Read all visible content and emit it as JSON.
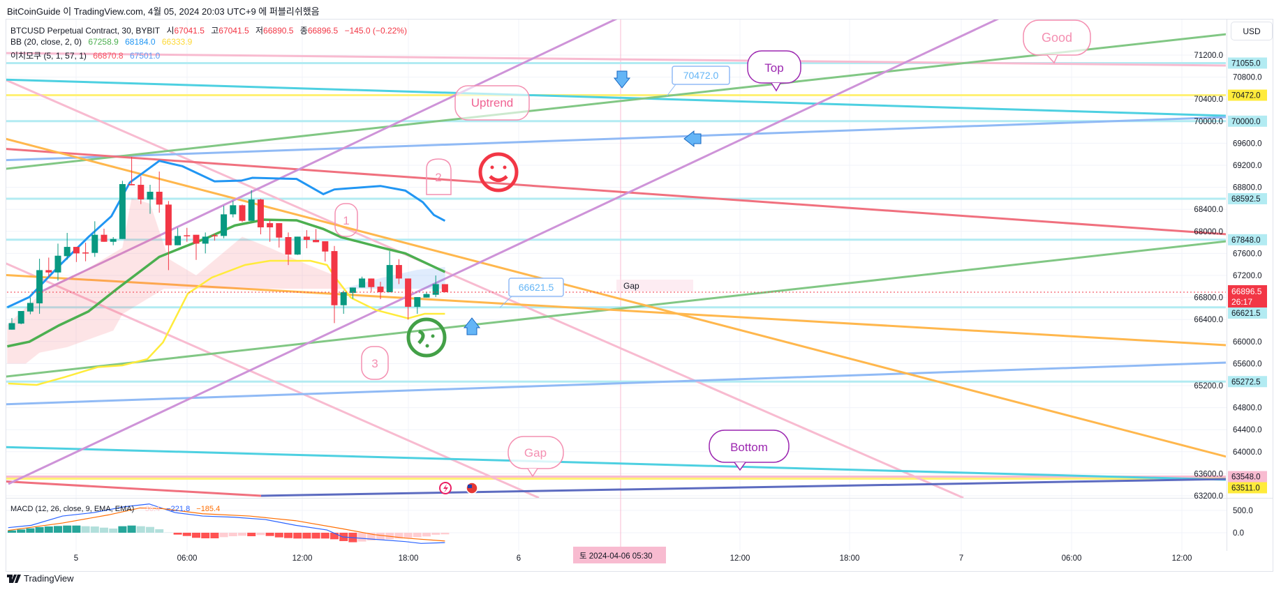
{
  "header": {
    "published": "BitCoinGuide 이 TradingView.com, 4월 05, 2024 20:03 UTC+9 에 퍼블리쉬했음",
    "symbol": "BTCUSD Perpetual Contract, 30, BYBIT",
    "o_label": "시",
    "o": "67041.5",
    "h_label": "고",
    "h": "67041.5",
    "l_label": "저",
    "l": "66890.5",
    "c_label": "종",
    "c": "66896.5",
    "change": "−145.0 (−0.22%)",
    "bb_label": "BB (20, close, 2, 0)",
    "bb_basis": "67258.9",
    "bb_upper": "68184.0",
    "bb_lower": "66333.9",
    "ichi_label": "이치모쿠 (5, 1, 57, 1)",
    "ichi_a": "66870.8",
    "ichi_b": "67501.0",
    "currency": "USD"
  },
  "colors": {
    "up": "#089981",
    "down": "#f23645",
    "bb_basis": "#4caf50",
    "bb_upper": "#2196f3",
    "bb_lower": "#ffeb3b"
  },
  "price_axis": {
    "ticks": [
      "71200.0",
      "70800.0",
      "70400.0",
      "70000.0",
      "69600.0",
      "69200.0",
      "68800.0",
      "68400.0",
      "68000.0",
      "67600.0",
      "67200.0",
      "66800.0",
      "66400.0",
      "66000.0",
      "65600.0",
      "65200.0",
      "64800.0",
      "64400.0",
      "64000.0",
      "63600.0",
      "63200.0"
    ],
    "labels": [
      {
        "text": "71055.0",
        "color": "#b2ebf2"
      },
      {
        "text": "70472.0",
        "color": "#ffeb3b"
      },
      {
        "text": "70000.0",
        "color": "#b2ebf2"
      },
      {
        "text": "68592.5",
        "color": "#b2ebf2"
      },
      {
        "text": "67848.0",
        "color": "#b2ebf2"
      },
      {
        "text": "66621.5",
        "color": "#b2ebf2"
      },
      {
        "text": "65272.5",
        "color": "#b2ebf2"
      },
      {
        "text": "63548.0",
        "color": "#f8bbd0"
      },
      {
        "text": "63511.0",
        "color": "#ffeb3b"
      }
    ],
    "last_price": "66896.5",
    "countdown": "26:17"
  },
  "time_axis": {
    "ticks": [
      "5",
      "06:00",
      "12:00",
      "18:00",
      "6",
      "12:00",
      "18:00",
      "7",
      "06:00",
      "12:00"
    ],
    "crosshair": "토 2024-04-06 05:30"
  },
  "annotations": {
    "uptrend": "Uptrend",
    "top": "Top",
    "good": "Good",
    "bottom": "Bottom",
    "gap_bubble": "Gap",
    "gap_text": "Gap",
    "price_note_1": "70472.0",
    "price_note_2": "66621.5",
    "n1": "1",
    "n2": "2",
    "n3": "3"
  },
  "macd": {
    "label": "MACD (12, 26, close, 9, EMA, EMA)",
    "hist": "−36.4",
    "macd": "−221.8",
    "signal": "−185.4",
    "ticks": [
      "500.0",
      "0.0"
    ]
  },
  "footer": {
    "brand": "TradingView"
  },
  "chart_data": {
    "type": "candlestick",
    "title": "BTCUSD Perpetual Contract, 30, BYBIT",
    "ylim": [
      63100,
      71600
    ],
    "interval_minutes": 30,
    "candles": [
      [
        66216,
        66334,
        66427,
        66216
      ],
      [
        66326,
        66554,
        66554,
        66313
      ],
      [
        66545,
        66701,
        66798,
        66495
      ],
      [
        66693,
        67296,
        67503,
        66503
      ],
      [
        67296,
        67254,
        67524,
        67178
      ],
      [
        67254,
        67558,
        67777,
        67106
      ],
      [
        67550,
        67718,
        67972,
        67486
      ],
      [
        67718,
        67600,
        67718,
        67444
      ],
      [
        67617,
        67609,
        67794,
        67457
      ],
      [
        67609,
        67938,
        68183,
        67537
      ],
      [
        67938,
        67811,
        68048,
        67811
      ],
      [
        67811,
        67862,
        67896,
        67748
      ],
      [
        67862,
        68858,
        68917,
        67862
      ],
      [
        68858,
        68837,
        69352,
        68837
      ],
      [
        68845,
        68579,
        69001,
        68495
      ],
      [
        68579,
        68719,
        68845,
        68318
      ],
      [
        68719,
        68486,
        69086,
        68339
      ],
      [
        68486,
        67748,
        68550,
        67296
      ],
      [
        67748,
        67917,
        68064,
        67748
      ],
      [
        67929,
        67925,
        68064,
        67811
      ],
      [
        67938,
        67777,
        67938,
        67482
      ],
      [
        67777,
        67904,
        67980,
        67600
      ],
      [
        67929,
        67917,
        67959,
        67832
      ],
      [
        67917,
        68309,
        68465,
        67875
      ],
      [
        68309,
        68474,
        68550,
        68254
      ],
      [
        68474,
        68191,
        68486,
        68170
      ],
      [
        68191,
        68579,
        68748,
        68191
      ],
      [
        68579,
        68073,
        68592,
        67946
      ],
      [
        68149,
        68073,
        68212,
        67811
      ],
      [
        68149,
        67887,
        68149,
        67706
      ],
      [
        67896,
        67579,
        67980,
        67389
      ],
      [
        67579,
        67904,
        67904,
        67571
      ],
      [
        67904,
        67845,
        68022,
        67693
      ],
      [
        67845,
        67803,
        68043,
        67803
      ],
      [
        67820,
        67634,
        67820,
        67453
      ],
      [
        67642,
        66659,
        67735,
        66334
      ],
      [
        66659,
        66895,
        66925,
        66503
      ],
      [
        66883,
        66980,
        66980,
        66777
      ],
      [
        66980,
        67144,
        67178,
        66980
      ],
      [
        67144,
        66988,
        67144,
        66904
      ],
      [
        66997,
        66895,
        67085,
        66769
      ],
      [
        66895,
        67389,
        67642,
        66895
      ],
      [
        67389,
        67144,
        67495,
        67043
      ],
      [
        67144,
        66630,
        67144,
        66398
      ],
      [
        66630,
        66807,
        66807,
        66503
      ],
      [
        66798,
        66862,
        66904,
        66798
      ],
      [
        66849,
        67043,
        67199,
        66807
      ],
      [
        67041.5,
        66896.5,
        67041.5,
        66890.5
      ]
    ],
    "bb_upper": [
      [
        -0.5,
        66621
      ],
      [
        1.9,
        66807
      ],
      [
        5.1,
        67368
      ],
      [
        8.3,
        67896
      ],
      [
        10.8,
        68275
      ],
      [
        12.8,
        68887
      ],
      [
        16,
        69280
      ],
      [
        18.5,
        69183
      ],
      [
        22,
        68908
      ],
      [
        24.9,
        68921
      ],
      [
        26.1,
        68972
      ],
      [
        30.9,
        68951
      ],
      [
        33.8,
        68676
      ],
      [
        35,
        68761
      ],
      [
        40,
        68824
      ],
      [
        42.7,
        68740
      ],
      [
        44.6,
        68529
      ],
      [
        45.8,
        68297
      ],
      [
        47,
        68191
      ]
    ],
    "bb_basis": [
      [
        -0.5,
        65912
      ],
      [
        1.9,
        65997
      ],
      [
        5.1,
        66292
      ],
      [
        8.3,
        66545
      ],
      [
        11.5,
        66967
      ],
      [
        16,
        67537
      ],
      [
        18.5,
        67706
      ],
      [
        21.1,
        67875
      ],
      [
        24.2,
        68107
      ],
      [
        27.4,
        68212
      ],
      [
        30.9,
        68200
      ],
      [
        33.8,
        68043
      ],
      [
        35.7,
        67896
      ],
      [
        40.1,
        67706
      ],
      [
        42.7,
        67600
      ],
      [
        47,
        67263
      ]
    ],
    "bb_lower": [
      [
        -0.4,
        65238
      ],
      [
        2.7,
        65213
      ],
      [
        5.8,
        65358
      ],
      [
        9.3,
        65535
      ],
      [
        12,
        65567
      ],
      [
        14.7,
        65681
      ],
      [
        16.4,
        65985
      ],
      [
        19.1,
        66871
      ],
      [
        21.7,
        67162
      ],
      [
        25.3,
        67390
      ],
      [
        28,
        67466
      ],
      [
        32.4,
        67466
      ],
      [
        34.2,
        67390
      ],
      [
        35.1,
        67162
      ],
      [
        36.8,
        66795
      ],
      [
        39.5,
        66572
      ],
      [
        43,
        66420
      ],
      [
        44.8,
        66504
      ],
      [
        47,
        66504
      ]
    ],
    "cloud_bear": [
      [
        -0.5,
        66300
      ],
      [
        4,
        67000
      ],
      [
        8,
        67300
      ],
      [
        12,
        67700
      ],
      [
        13,
        68600
      ],
      [
        15,
        68500
      ],
      [
        17,
        67500
      ],
      [
        20,
        67200
      ],
      [
        25,
        67900
      ],
      [
        28,
        67700
      ],
      [
        32,
        67400
      ],
      [
        35,
        67200
      ],
      [
        36,
        66960
      ],
      [
        16.5,
        66960
      ],
      [
        12,
        66500
      ],
      [
        11,
        66200
      ],
      [
        6,
        65900
      ],
      [
        3,
        65800
      ],
      [
        1.5,
        65600
      ],
      [
        -0.5,
        65600
      ]
    ],
    "cloud_bull": [
      [
        36,
        66960
      ],
      [
        40,
        67150
      ],
      [
        44,
        67300
      ],
      [
        47,
        67350
      ],
      [
        47,
        66960
      ]
    ],
    "macd_hist": [
      52,
      73,
      99,
      125,
      140,
      151,
      161,
      161,
      146,
      140,
      114,
      94,
      146,
      161,
      146,
      130,
      78,
      5,
      -42,
      -73,
      -114,
      -125,
      -125,
      -99,
      -78,
      -68,
      -78,
      -52,
      -73,
      -104,
      -120,
      -130,
      -130,
      -130,
      -130,
      -146,
      -187,
      -213,
      -198,
      -172,
      -156,
      -146,
      -130,
      -114,
      -99,
      -83,
      -45,
      -36
    ],
    "macd_line": [
      [
        -0.4,
        114
      ],
      [
        2.1,
        166
      ],
      [
        5.5,
        374
      ],
      [
        8.9,
        452
      ],
      [
        12.2,
        582
      ],
      [
        14.9,
        645
      ],
      [
        17.7,
        452
      ],
      [
        20.7,
        374
      ],
      [
        24.1,
        348
      ],
      [
        27.5,
        296
      ],
      [
        30.8,
        166
      ],
      [
        34.2,
        62
      ],
      [
        35.9,
        -94
      ],
      [
        39.3,
        -146
      ],
      [
        42.7,
        -198
      ],
      [
        44.4,
        -239
      ],
      [
        47,
        -222
      ]
    ],
    "signal_line": [
      [
        -0.4,
        52
      ],
      [
        5.5,
        218
      ],
      [
        10.5,
        400
      ],
      [
        13.9,
        556
      ],
      [
        16.3,
        541
      ],
      [
        20.7,
        426
      ],
      [
        25.8,
        374
      ],
      [
        30.8,
        270
      ],
      [
        35.9,
        88
      ],
      [
        39.3,
        -42
      ],
      [
        42.7,
        -120
      ],
      [
        47,
        -185
      ]
    ]
  }
}
